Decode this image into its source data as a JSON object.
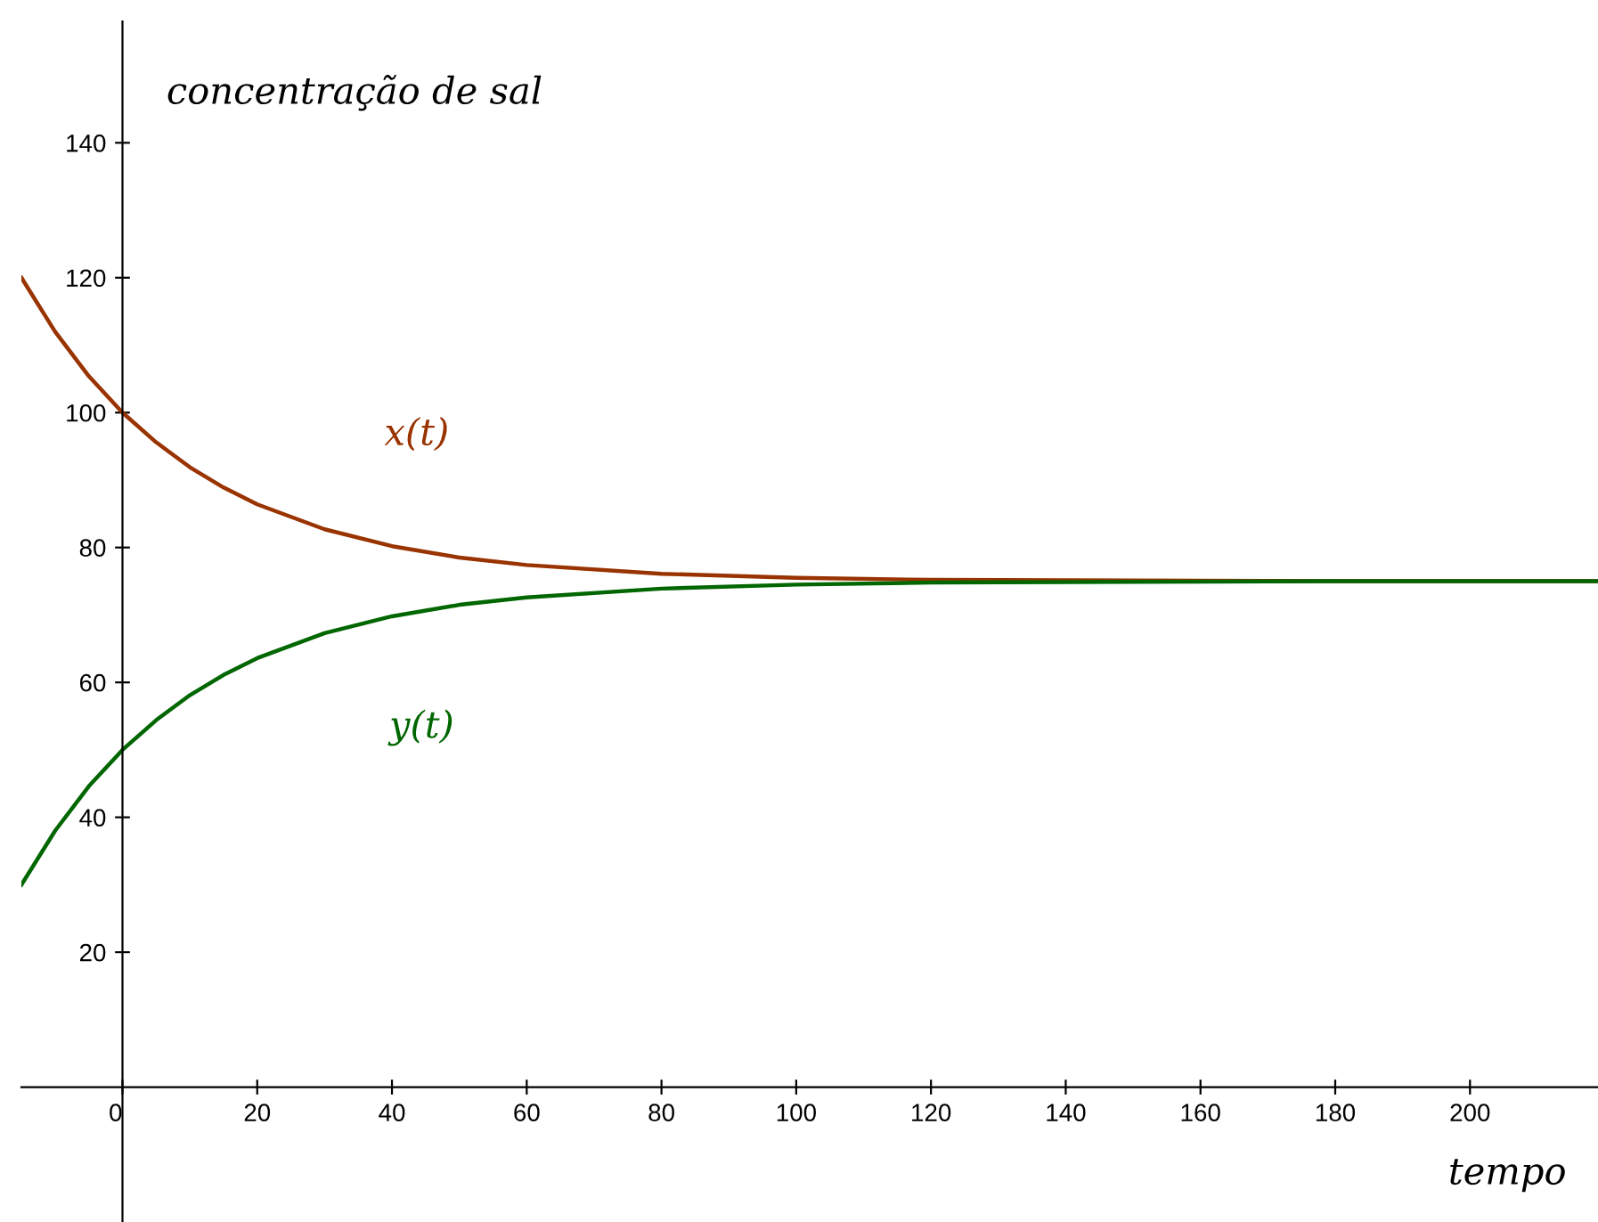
{
  "chart_data": {
    "type": "line",
    "ylabel": "concentração de sal",
    "xlabel": "tempo",
    "x": [
      -15,
      -10,
      -5,
      0,
      5,
      10,
      15,
      20,
      30,
      40,
      50,
      60,
      80,
      100,
      120,
      150,
      180,
      219
    ],
    "series": [
      {
        "name": "x(t)",
        "color": "#993300",
        "values": [
          120,
          112,
          105.4,
          100,
          95.6,
          91.9,
          88.9,
          86.4,
          82.7,
          80.2,
          78.5,
          77.4,
          76.1,
          75.5,
          75.2,
          75.1,
          75,
          75
        ]
      },
      {
        "name": "y(t)",
        "color": "#006600",
        "values": [
          30,
          38,
          44.6,
          50,
          54.4,
          58.1,
          61.1,
          63.6,
          67.3,
          69.8,
          71.5,
          72.6,
          73.9,
          74.5,
          74.8,
          74.9,
          75,
          75
        ]
      }
    ],
    "xlim": [
      -15,
      219
    ],
    "ylim": [
      -20,
      158
    ],
    "xticks": [
      0,
      20,
      40,
      60,
      80,
      100,
      120,
      140,
      160,
      180,
      200
    ],
    "yticks": [
      20,
      40,
      60,
      80,
      100,
      120,
      140
    ],
    "grid": false,
    "legend": false,
    "marker": "none",
    "line_style": "solid"
  }
}
